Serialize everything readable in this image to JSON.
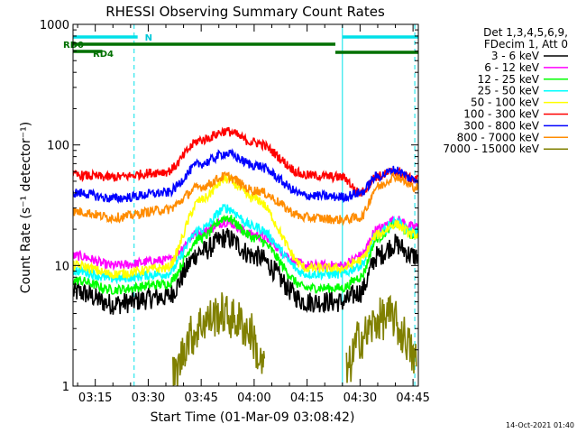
{
  "chart_data": {
    "type": "line",
    "title": "RHESSI Observing Summary Count Rates",
    "xlabel": "Start Time (01-Mar-09 03:08:42)",
    "ylabel": "Count Rate (s⁻¹ detector⁻¹)",
    "y_scale": "log",
    "ylim": [
      1,
      1000
    ],
    "xlim_minutes": [
      "03:08:42",
      "04:46:30"
    ],
    "x_ticks": [
      "03:15",
      "03:30",
      "03:45",
      "04:00",
      "04:15",
      "04:30",
      "04:45"
    ],
    "y_ticks": [
      "1",
      "10",
      "100",
      "1000"
    ],
    "grid": false,
    "legend_position": "right",
    "legend_header": [
      "Det 1,3,4,5,6,9,",
      "FDecim 1, Att 0"
    ],
    "timestamp": "14-Oct-2021 01:40",
    "series": [
      {
        "name": "3 - 6 keV",
        "color": "#000000",
        "x": [
          "03:10",
          "03:20",
          "03:35",
          "03:45",
          "03:52",
          "04:00",
          "04:15",
          "04:25",
          "04:30",
          "04:35",
          "04:40",
          "04:45"
        ],
        "y": [
          6,
          4.8,
          5.5,
          13,
          17,
          12,
          5,
          5,
          6,
          12,
          15,
          12
        ]
      },
      {
        "name": "6 - 12 keV",
        "color": "#ff00ff",
        "x": [
          "03:10",
          "03:20",
          "03:35",
          "03:45",
          "03:52",
          "04:00",
          "04:15",
          "04:25",
          "04:30",
          "04:35",
          "04:40",
          "04:45"
        ],
        "y": [
          12,
          10,
          11,
          19,
          23,
          18,
          10,
          10,
          12,
          20,
          24,
          21
        ]
      },
      {
        "name": "12 - 25 keV",
        "color": "#00ff00",
        "x": [
          "03:10",
          "03:20",
          "03:35",
          "03:45",
          "03:52",
          "04:00",
          "04:15",
          "04:25",
          "04:30",
          "04:35",
          "04:40",
          "04:45"
        ],
        "y": [
          7.5,
          6.3,
          7,
          17,
          25,
          17,
          6.5,
          6.5,
          8,
          17,
          22,
          18
        ]
      },
      {
        "name": "25 - 50 keV",
        "color": "#00ffff",
        "x": [
          "03:10",
          "03:20",
          "03:35",
          "03:45",
          "03:52",
          "04:00",
          "04:15",
          "04:25",
          "04:30",
          "04:35",
          "04:40",
          "04:45"
        ],
        "y": [
          9,
          7.8,
          8.5,
          20,
          30,
          21,
          8.5,
          8.5,
          10,
          18,
          23,
          19
        ]
      },
      {
        "name": "50 - 100 keV",
        "color": "#ffff00",
        "x": [
          "03:10",
          "03:20",
          "03:35",
          "03:45",
          "03:52",
          "04:00",
          "04:15",
          "04:25",
          "04:30",
          "04:35",
          "04:40",
          "04:45"
        ],
        "y": [
          10,
          8.5,
          9.5,
          35,
          52,
          36,
          9.5,
          9.5,
          11,
          18,
          22,
          18
        ]
      },
      {
        "name": "100 - 300 keV",
        "color": "#ff0000",
        "x": [
          "03:10",
          "03:20",
          "03:35",
          "03:45",
          "03:52",
          "04:00",
          "04:15",
          "04:25",
          "04:30",
          "04:35",
          "04:40",
          "04:45"
        ],
        "y": [
          56,
          54,
          60,
          110,
          130,
          105,
          56,
          54,
          40,
          55,
          60,
          52
        ]
      },
      {
        "name": "300 - 800 keV",
        "color": "#0000ff",
        "x": [
          "03:10",
          "03:20",
          "03:35",
          "03:45",
          "03:52",
          "04:00",
          "04:15",
          "04:25",
          "04:30",
          "04:35",
          "04:40",
          "04:45"
        ],
        "y": [
          40,
          36,
          40,
          70,
          85,
          68,
          38,
          37,
          40,
          55,
          62,
          52
        ]
      },
      {
        "name": "800 - 7000 keV",
        "color": "#ff8c00",
        "x": [
          "03:10",
          "03:20",
          "03:35",
          "03:45",
          "03:52",
          "04:00",
          "04:15",
          "04:25",
          "04:30",
          "04:35",
          "04:40",
          "04:45"
        ],
        "y": [
          28,
          25,
          29,
          45,
          55,
          42,
          25,
          24,
          25,
          45,
          55,
          45
        ]
      },
      {
        "name": "7000 - 15000 keV",
        "color": "#808000",
        "x": [
          "03:37",
          "03:42",
          "03:46",
          "03:51",
          "03:55",
          "03:59",
          "04:02",
          "04:26",
          "04:30",
          "04:36",
          "04:39",
          "04:42",
          "04:46"
        ],
        "y": [
          1.2,
          2.6,
          3.5,
          4,
          3.5,
          2.8,
          1.5,
          1.3,
          2.5,
          3.6,
          3.8,
          2.7,
          1.6
        ]
      }
    ],
    "annotations": {
      "flags": [
        {
          "label": "N",
          "color": "#00e0e8",
          "start": "03:08:42",
          "end": "03:27:00"
        },
        {
          "label": "RD0",
          "color": "#007000",
          "start": "03:08:42",
          "end": "04:23:00"
        },
        {
          "label": "RD4",
          "color": "#007000",
          "start": "03:08:42",
          "end": "03:17:00"
        },
        {
          "label": "",
          "color": "#00e0e8",
          "start": "04:25:00",
          "end": "04:46:30"
        },
        {
          "label": "",
          "color": "#007000",
          "start": "04:23:00",
          "end": "04:46:30"
        }
      ],
      "vertical_lines": [
        {
          "time": "03:08:42",
          "color": "#00e0e8",
          "style": "solid"
        },
        {
          "time": "03:26:00",
          "color": "#00e0e8",
          "style": "dashed"
        },
        {
          "time": "04:25:00",
          "color": "#00e0e8",
          "style": "solid"
        },
        {
          "time": "04:45:30",
          "color": "#00e0e8",
          "style": "dashed"
        }
      ]
    }
  }
}
